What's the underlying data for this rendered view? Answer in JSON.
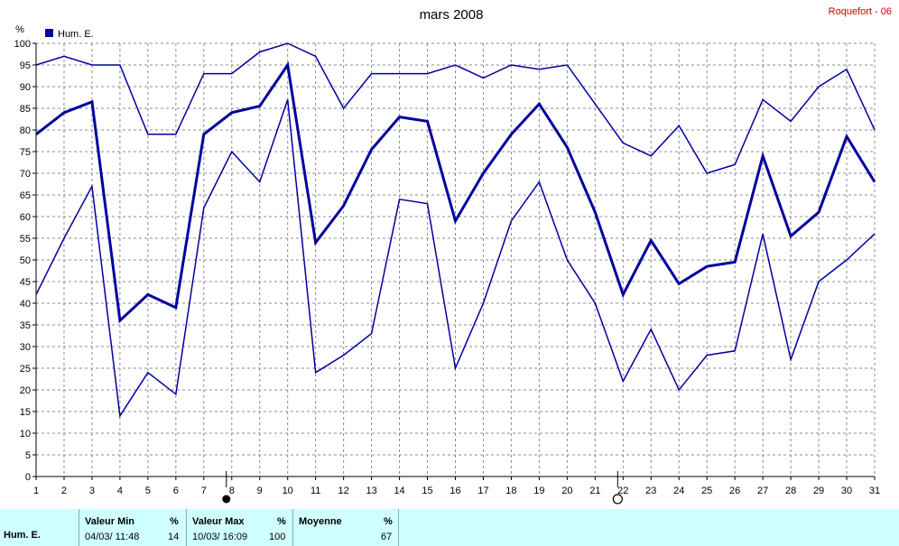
{
  "header": {
    "title": "mars 2008",
    "station": "Roquefort - 06"
  },
  "chart_data": {
    "type": "line",
    "title": "mars 2008",
    "ylabel": "%",
    "ylim": [
      0,
      100
    ],
    "yticks": [
      0,
      5,
      10,
      15,
      20,
      25,
      30,
      35,
      40,
      45,
      50,
      55,
      60,
      65,
      70,
      75,
      80,
      85,
      90,
      95,
      100
    ],
    "x": [
      1,
      2,
      3,
      4,
      5,
      6,
      7,
      8,
      9,
      10,
      11,
      12,
      13,
      14,
      15,
      16,
      17,
      18,
      19,
      20,
      21,
      22,
      23,
      24,
      25,
      26,
      27,
      28,
      29,
      30,
      31
    ],
    "legend": [
      {
        "name": "Hum. E.",
        "color": "#0000a0"
      }
    ],
    "legend_position": "top-left",
    "grid": true,
    "series": [
      {
        "values": [
          95,
          97,
          95,
          95,
          79,
          79,
          93,
          93,
          98,
          100,
          97,
          85,
          93,
          93,
          93,
          95,
          92,
          95,
          94,
          95,
          86,
          77,
          74,
          81,
          70,
          72,
          87,
          82,
          90,
          94,
          80
        ],
        "width": 1.5
      },
      {
        "values": [
          79,
          84,
          86.5,
          36,
          42,
          39,
          79,
          84,
          85.5,
          95,
          54,
          62.5,
          75.5,
          83,
          82,
          59,
          70,
          79,
          86,
          76,
          61,
          42,
          54.5,
          44.5,
          48.5,
          49.5,
          74,
          55.5,
          61,
          78.5,
          68
        ],
        "width": 3
      },
      {
        "values": [
          42,
          55,
          67,
          14,
          24,
          19,
          62,
          75,
          68,
          87,
          24,
          28,
          33,
          64,
          63,
          25,
          40,
          59,
          68,
          50,
          40,
          22,
          34,
          20,
          28,
          29,
          56,
          27,
          45,
          50,
          56
        ],
        "width": 1.5
      }
    ],
    "markers": [
      {
        "x": 8,
        "symbol": "filled-circle"
      },
      {
        "x": 22,
        "symbol": "open-circle"
      }
    ],
    "color": "#0000a0"
  },
  "stats": {
    "label": "Hum. E.",
    "min": {
      "header": "Valeur Min",
      "unit": "%",
      "date": "04/03/ 11:48",
      "value": "14"
    },
    "max": {
      "header": "Valeur Max",
      "unit": "%",
      "date": "10/03/ 16:09",
      "value": "100"
    },
    "avg": {
      "header": "Moyenne",
      "unit": "%",
      "value": "67"
    }
  }
}
